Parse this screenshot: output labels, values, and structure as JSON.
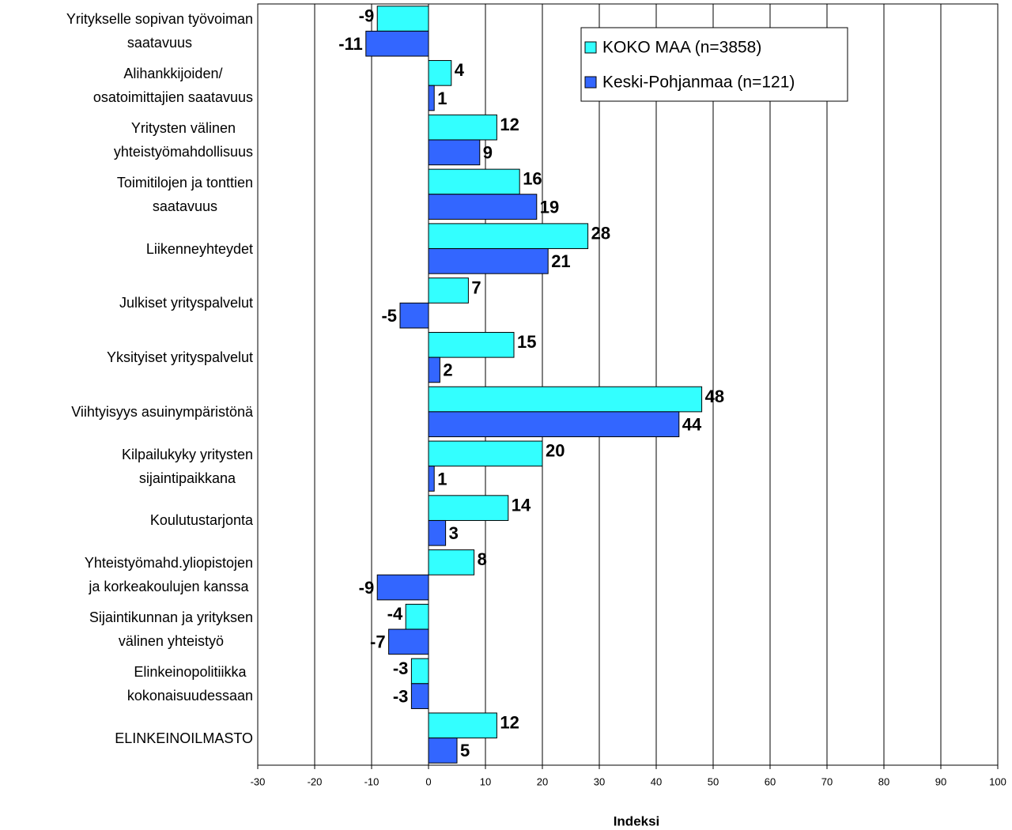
{
  "chart_data": {
    "type": "bar",
    "orientation": "horizontal",
    "x_label": "Indeksi",
    "categories": [
      "Yritykselle sopivan työvoiman\nsaatavuus",
      "Alihankkijoiden/\nosatoimittajien saatavuus",
      "Yritysten välinen\nyhteistyömahdollisuus",
      "Toimitilojen ja tonttien\nsaatavuus",
      "Liikenneyhteydet",
      "Julkiset yrityspalvelut",
      "Yksityiset yrityspalvelut",
      "Viihtyisyys asuinympäristönä",
      "Kilpailukyky yritysten\nsijaintipaikkana",
      "Koulutustarjonta",
      "Yhteistyömahd.yliopistojen\nja korkeakoulujen kanssa",
      "Sijaintikunnan ja yrityksen\nvälinen yhteistyö",
      "Elinkeinopolitiikka\nkokonaisuudessaan",
      "ELINKEINOILMASTO"
    ],
    "series": [
      {
        "name": "KOKO MAA (n=3858)",
        "color": "#33ffff",
        "values": [
          -9,
          4,
          12,
          16,
          28,
          7,
          15,
          48,
          20,
          14,
          8,
          -4,
          -3,
          12
        ]
      },
      {
        "name": "Keski-Pohjanmaa (n=121)",
        "color": "#3366ff",
        "values": [
          -11,
          1,
          9,
          19,
          21,
          -5,
          2,
          44,
          1,
          3,
          -9,
          -7,
          -3,
          5
        ]
      }
    ],
    "xlim": [
      -30,
      100
    ],
    "xticks": [
      -30,
      -20,
      -10,
      0,
      10,
      20,
      30,
      40,
      50,
      60,
      70,
      80,
      90,
      100
    ],
    "grid": true,
    "legend": "upper right"
  }
}
